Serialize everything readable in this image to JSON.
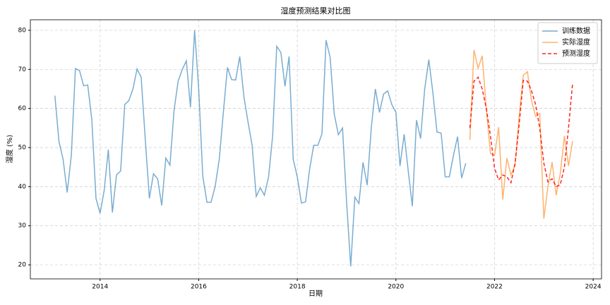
{
  "chart_data": {
    "type": "line",
    "title": "湿度预测结果对比图",
    "x_label": "日期",
    "y_label": "湿度 (%)",
    "xlim": [
      2012.586,
      2024.17
    ],
    "xticks": [
      2014,
      2016,
      2018,
      2020,
      2022,
      2024
    ],
    "ylim": [
      16.4,
      82.7
    ],
    "yticks": [
      20,
      30,
      40,
      50,
      60,
      70,
      80
    ],
    "grid": true,
    "legend": "upper right",
    "series": [
      {
        "name": "训练数据",
        "color": "#1f77b4",
        "style": "solid",
        "x": [
          2013.083,
          2013.167,
          2013.25,
          2013.333,
          2013.417,
          2013.5,
          2013.583,
          2013.667,
          2013.75,
          2013.833,
          2013.917,
          2014.0,
          2014.083,
          2014.167,
          2014.25,
          2014.333,
          2014.417,
          2014.5,
          2014.583,
          2014.667,
          2014.75,
          2014.833,
          2014.917,
          2015.0,
          2015.083,
          2015.167,
          2015.25,
          2015.333,
          2015.417,
          2015.5,
          2015.583,
          2015.667,
          2015.75,
          2015.833,
          2015.917,
          2016.0,
          2016.083,
          2016.167,
          2016.25,
          2016.333,
          2016.417,
          2016.5,
          2016.583,
          2016.667,
          2016.75,
          2016.833,
          2016.917,
          2017.0,
          2017.083,
          2017.167,
          2017.25,
          2017.333,
          2017.417,
          2017.5,
          2017.583,
          2017.667,
          2017.75,
          2017.833,
          2017.917,
          2018.0,
          2018.083,
          2018.167,
          2018.25,
          2018.333,
          2018.417,
          2018.5,
          2018.583,
          2018.667,
          2018.75,
          2018.833,
          2018.917,
          2019.0,
          2019.083,
          2019.167,
          2019.25,
          2019.333,
          2019.417,
          2019.5,
          2019.583,
          2019.667,
          2019.75,
          2019.833,
          2019.917,
          2020.0,
          2020.083,
          2020.167,
          2020.25,
          2020.333,
          2020.417,
          2020.5,
          2020.583,
          2020.667,
          2020.75,
          2020.833,
          2020.917,
          2021.0,
          2021.083,
          2021.167,
          2021.25,
          2021.333,
          2021.417
        ],
        "values": [
          63.3,
          51.5,
          47,
          38.5,
          48,
          70.2,
          69.7,
          65.8,
          66,
          57,
          37,
          33.2,
          39,
          49.5,
          33.4,
          43,
          44,
          61,
          62,
          65,
          70.1,
          68,
          52,
          37,
          43.3,
          42,
          35.2,
          47.3,
          45.5,
          59.5,
          67,
          70,
          72.2,
          60.3,
          80,
          65,
          42.7,
          36,
          36,
          40,
          47,
          59,
          70.5,
          67.4,
          67.3,
          73.3,
          63,
          56.6,
          50.6,
          37.5,
          39.7,
          37.8,
          42.5,
          53,
          75.9,
          74.3,
          65.7,
          73.3,
          47,
          42.5,
          35.8,
          36.1,
          44.5,
          50.6,
          50.6,
          53.5,
          77.5,
          73,
          58.5,
          53.3,
          55,
          36,
          19.6,
          37.3,
          35.7,
          46.2,
          40.4,
          55,
          65,
          59,
          63.7,
          64.5,
          61,
          59,
          45.3,
          53.4,
          44,
          35,
          57,
          52.3,
          64.9,
          72.5,
          64,
          54,
          53.7,
          42.5,
          42.5,
          48,
          52.8,
          42.2,
          46
        ]
      },
      {
        "name": "实际湿度",
        "color": "#ff7f0e",
        "style": "solid",
        "x": [
          2021.5,
          2021.583,
          2021.667,
          2021.75,
          2021.833,
          2021.917,
          2022.0,
          2022.083,
          2022.167,
          2022.25,
          2022.333,
          2022.417,
          2022.5,
          2022.583,
          2022.667,
          2022.75,
          2022.833,
          2022.917,
          2023.0,
          2023.083,
          2023.167,
          2023.25,
          2023.333,
          2023.417,
          2023.5,
          2023.583
        ],
        "values": [
          52,
          75,
          70.3,
          73.5,
          60,
          48.5,
          48,
          55.2,
          36.7,
          47.3,
          43,
          45.5,
          58,
          68.5,
          69.4,
          62,
          58,
          58.7,
          31.8,
          40,
          46.3,
          37.8,
          43.3,
          53,
          45.3,
          51.7
        ]
      },
      {
        "name": "预测湿度",
        "color": "#ff0000",
        "style": "dashed",
        "x": [
          2021.5,
          2021.583,
          2021.667,
          2021.75,
          2021.833,
          2021.917,
          2022.0,
          2022.083,
          2022.167,
          2022.25,
          2022.333,
          2022.417,
          2022.5,
          2022.583,
          2022.667,
          2022.75,
          2022.833,
          2022.917,
          2023.0,
          2023.083,
          2023.167,
          2023.25,
          2023.333,
          2023.417,
          2023.5,
          2023.583
        ],
        "values": [
          55,
          67,
          68,
          65,
          60,
          53,
          44.7,
          41.7,
          43,
          42.5,
          41,
          46,
          56,
          67.2,
          67,
          64.5,
          61,
          55,
          46,
          41.2,
          42,
          40,
          40.5,
          45,
          55,
          66.5
        ]
      }
    ]
  }
}
